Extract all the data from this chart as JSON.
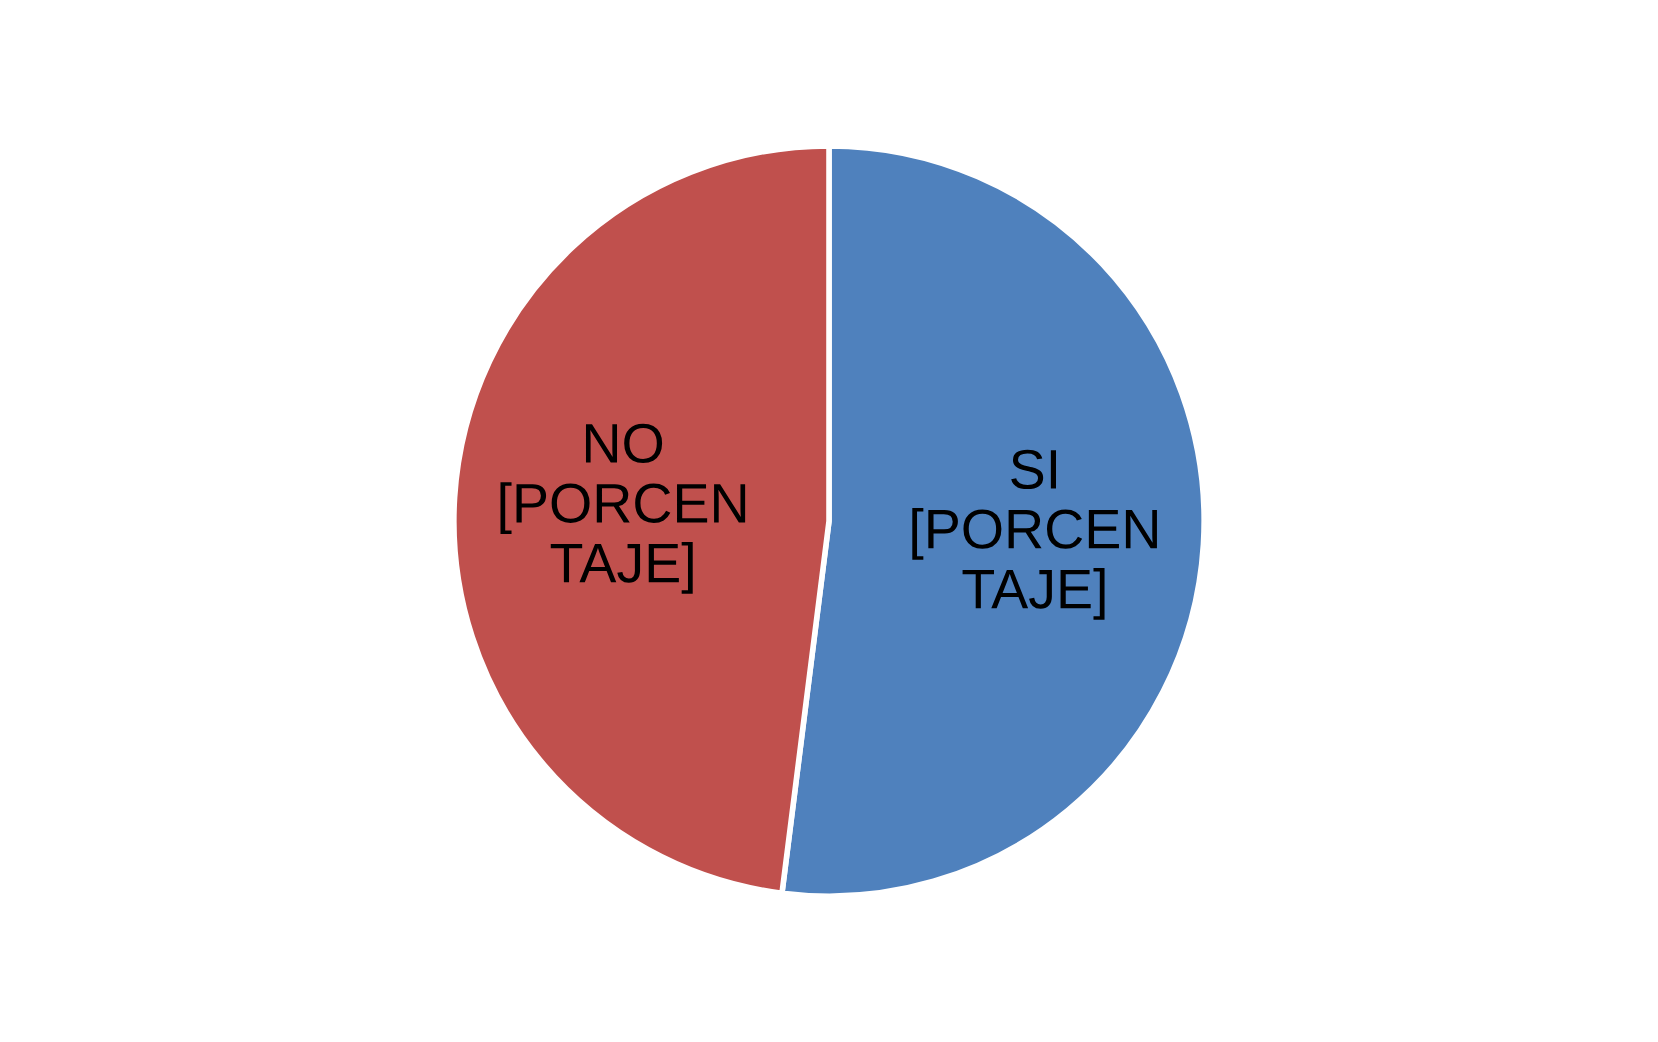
{
  "chart_data": {
    "type": "pie",
    "categories": [
      "SI",
      "NO"
    ],
    "values": [
      52,
      48
    ],
    "colors": [
      "#4f81bd",
      "#c0504d"
    ],
    "value_labels": [
      "[PORCEN\nTAJE]",
      "[PORCEN\nTAJE]"
    ],
    "legend": false
  }
}
